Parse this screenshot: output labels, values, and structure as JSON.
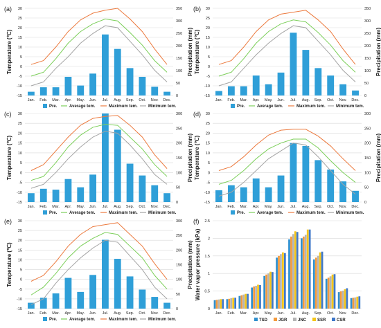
{
  "months": [
    "Jan.",
    "Feb.",
    "Mar.",
    "Apr.",
    "May.",
    "Jun.",
    "Jul.",
    "Aug.",
    "Sep.",
    "Oct.",
    "Nov.",
    "Dec."
  ],
  "colors": {
    "precipitation": "#2f9fd8",
    "average": "#7ccf5a",
    "maximum": "#ec7a3e",
    "minimum": "#a4a4a4",
    "TSD": "#2f8fce",
    "JGR": "#f39a3d",
    "JNC": "#b5b5b5",
    "SSR": "#f5c518",
    "CSR": "#3f78c9",
    "grid": "#d9d9d9"
  },
  "chart_data": [
    {
      "panel_label": "(a)",
      "type": "bar+line",
      "ylabel_left": "Temperature (℃)",
      "ylabel_right": "Precipitation (mm)",
      "ylim_left": [
        -15,
        30
      ],
      "yticks_left": [
        -15,
        -10,
        -5,
        0,
        5,
        10,
        15,
        20,
        25,
        30
      ],
      "ylim_right": [
        0,
        350
      ],
      "yticks_right": [
        0,
        50,
        100,
        150,
        200,
        250,
        300,
        350
      ],
      "categories": [
        "Jan.",
        "Feb.",
        "Mar.",
        "Apr.",
        "May.",
        "Jun.",
        "Jul.",
        "Aug.",
        "Sep.",
        "Oct.",
        "Nov.",
        "Dec."
      ],
      "grid": true,
      "legend": "bottom",
      "series": [
        {
          "name": "Pre.",
          "type": "bar",
          "axis": "right",
          "values": [
            15,
            33,
            33,
            75,
            40,
            88,
            245,
            187,
            110,
            75,
            35,
            15
          ]
        },
        {
          "name": "Average tem.",
          "type": "line",
          "axis": "left",
          "values": [
            -5,
            -3,
            4,
            12,
            18,
            22,
            24.5,
            23.5,
            17.5,
            11,
            3,
            -3
          ]
        },
        {
          "name": "Maximum tem.",
          "type": "line",
          "axis": "left",
          "values": [
            1,
            3,
            10,
            18,
            24,
            27.5,
            29,
            30,
            24.5,
            18,
            9,
            1
          ]
        },
        {
          "name": "Minimum tem.",
          "type": "line",
          "axis": "left",
          "values": [
            -10,
            -8,
            -1,
            5,
            12,
            17,
            21,
            20,
            13,
            6,
            -2,
            -8
          ]
        }
      ]
    },
    {
      "panel_label": "(b)",
      "type": "bar+line",
      "ylabel_left": "Temperature (℃)",
      "ylabel_right": "Precipitation (mm)",
      "ylim_left": [
        -15,
        30
      ],
      "yticks_left": [
        -15,
        -10,
        -5,
        0,
        5,
        10,
        15,
        20,
        25,
        30
      ],
      "ylim_right": [
        0,
        350
      ],
      "yticks_right": [
        0,
        50,
        100,
        150,
        200,
        250,
        300,
        350
      ],
      "categories": [
        "Jan.",
        "Feb.",
        "Mar.",
        "Apr.",
        "May.",
        "Jun.",
        "Jul.",
        "Aug.",
        "Sep.",
        "Oct.",
        "Nov.",
        "Dec."
      ],
      "grid": true,
      "legend": "bottom",
      "series": [
        {
          "name": "Pre.",
          "type": "bar",
          "axis": "right",
          "values": [
            18,
            37,
            37,
            80,
            45,
            92,
            252,
            183,
            110,
            80,
            45,
            20
          ]
        },
        {
          "name": "Average tem.",
          "type": "line",
          "axis": "left",
          "values": [
            -5,
            -3,
            4,
            12,
            18,
            22,
            24,
            23,
            17.5,
            11,
            3,
            -3
          ]
        },
        {
          "name": "Maximum tem.",
          "type": "line",
          "axis": "left",
          "values": [
            1,
            3,
            10,
            18,
            24,
            27,
            28,
            29,
            24,
            18,
            9,
            1
          ]
        },
        {
          "name": "Minimum tem.",
          "type": "line",
          "axis": "left",
          "values": [
            -10,
            -8,
            -1,
            6,
            12,
            17,
            21,
            20,
            13,
            6,
            -2,
            -8
          ]
        }
      ]
    },
    {
      "panel_label": "(c)",
      "type": "bar+line",
      "ylabel_left": "Temperature (℃)",
      "ylabel_right": "Precipitation (mm)",
      "ylim_left": [
        -15,
        30
      ],
      "yticks_left": [
        -15,
        -10,
        -5,
        0,
        5,
        10,
        15,
        20,
        25,
        30
      ],
      "ylim_right": [
        0,
        300
      ],
      "yticks_right": [
        0,
        50,
        100,
        150,
        200,
        250,
        300
      ],
      "categories": [
        "Jan.",
        "Feb.",
        "Mar.",
        "Apr.",
        "May.",
        "Jun.",
        "Jul.",
        "Aug.",
        "Sep.",
        "Oct.",
        "Nov.",
        "Dec."
      ],
      "grid": true,
      "legend": "bottom",
      "series": [
        {
          "name": "Pre.",
          "type": "bar",
          "axis": "right",
          "values": [
            30,
            45,
            42,
            78,
            50,
            93,
            300,
            245,
            130,
            90,
            57,
            30
          ]
        },
        {
          "name": "Average tem.",
          "type": "line",
          "axis": "left",
          "values": [
            -4,
            -2,
            5,
            13,
            19,
            23,
            24.5,
            24,
            18,
            12,
            4,
            -2
          ]
        },
        {
          "name": "Maximum tem.",
          "type": "line",
          "axis": "left",
          "values": [
            1,
            4,
            11,
            18,
            24,
            27.5,
            28.5,
            29,
            24,
            18,
            9,
            2
          ]
        },
        {
          "name": "Minimum tem.",
          "type": "line",
          "axis": "left",
          "values": [
            -8,
            -6,
            0,
            7,
            13,
            18,
            21,
            20,
            14,
            7,
            -1,
            -6
          ]
        }
      ]
    },
    {
      "panel_label": "(d)",
      "type": "bar+line",
      "ylabel_left": "Temperature (℃)",
      "ylabel_right": "Precipitation (mm)",
      "ylim_left": [
        -15,
        30
      ],
      "yticks_left": [
        -15,
        -10,
        -5,
        0,
        5,
        10,
        15,
        20,
        25,
        30
      ],
      "ylim_right": [
        0,
        300
      ],
      "yticks_right": [
        0,
        50,
        100,
        150,
        200,
        250,
        300
      ],
      "categories": [
        "Jan.",
        "Feb.",
        "Mar.",
        "Apr.",
        "May.",
        "Jun.",
        "Jul.",
        "Aug.",
        "Sep.",
        "Oct.",
        "Nov.",
        "Dec."
      ],
      "grid": true,
      "legend": "bottom",
      "series": [
        {
          "name": "Pre.",
          "type": "bar",
          "axis": "right",
          "values": [
            40,
            57,
            50,
            80,
            50,
            90,
            200,
            190,
            142,
            110,
            70,
            38
          ]
        },
        {
          "name": "Average tem.",
          "type": "line",
          "axis": "left",
          "values": [
            -6,
            -4,
            1,
            7,
            12,
            15,
            17,
            17,
            12.5,
            6,
            0,
            -5
          ]
        },
        {
          "name": "Maximum tem.",
          "type": "line",
          "axis": "left",
          "values": [
            1,
            3,
            8,
            14,
            19,
            21.5,
            22,
            22,
            18.5,
            13.5,
            7,
            1
          ]
        },
        {
          "name": "Minimum tem.",
          "type": "line",
          "axis": "left",
          "values": [
            -12,
            -10,
            -5,
            1,
            7,
            11,
            15,
            14,
            8,
            1,
            -6,
            -11
          ]
        }
      ]
    },
    {
      "panel_label": "(e)",
      "type": "bar+line",
      "ylabel_left": "Temperature (℃)",
      "ylabel_right": "Precipitation (mm)",
      "ylim_left": [
        -15,
        30
      ],
      "yticks_left": [
        -15,
        -10,
        -5,
        0,
        5,
        10,
        15,
        20,
        25,
        30
      ],
      "ylim_right": [
        0,
        300
      ],
      "yticks_right": [
        0,
        50,
        100,
        150,
        200,
        250,
        300
      ],
      "categories": [
        "Jan.",
        "Feb.",
        "Mar.",
        "Apr.",
        "May.",
        "Jun.",
        "Jul.",
        "Aug.",
        "Sep.",
        "Oct.",
        "Nov.",
        "Dec."
      ],
      "grid": true,
      "legend": "bottom",
      "series": [
        {
          "name": "Pre.",
          "type": "bar",
          "axis": "right",
          "values": [
            20,
            37,
            52,
            105,
            57,
            115,
            235,
            170,
            110,
            65,
            40,
            20
          ]
        },
        {
          "name": "Average tem.",
          "type": "line",
          "axis": "left",
          "values": [
            -8,
            -4,
            3,
            11,
            17,
            21,
            24,
            23,
            17,
            11,
            2,
            -5
          ]
        },
        {
          "name": "Maximum tem.",
          "type": "line",
          "axis": "left",
          "values": [
            -1,
            2,
            9,
            17,
            23,
            27,
            28,
            29,
            23,
            17,
            8,
            0
          ]
        },
        {
          "name": "Minimum tem.",
          "type": "line",
          "axis": "left",
          "values": [
            -13,
            -10,
            -2,
            5,
            11,
            16,
            20,
            19,
            12,
            5,
            -4,
            -10
          ]
        }
      ]
    },
    {
      "panel_label": "(f)",
      "type": "bar",
      "ylabel": "Water vapor pressure (kPa)",
      "ylim": [
        0,
        2.5
      ],
      "yticks": [
        0,
        0.5,
        1,
        1.5,
        2,
        2.5
      ],
      "categories": [
        "Jan.",
        "Feb.",
        "Mar.",
        "Apr.",
        "May.",
        "Jun.",
        "Jul.",
        "Aug.",
        "Sep.",
        "Oct.",
        "Nov.",
        "Dec."
      ],
      "grid": true,
      "legend": "bottom",
      "series": [
        {
          "name": "TSD",
          "values": [
            0.24,
            0.27,
            0.36,
            0.6,
            0.93,
            1.45,
            1.97,
            2.0,
            1.4,
            0.85,
            0.47,
            0.3
          ]
        },
        {
          "name": "JGR",
          "values": [
            0.25,
            0.28,
            0.38,
            0.63,
            0.97,
            1.5,
            2.05,
            2.05,
            1.45,
            0.88,
            0.49,
            0.31
          ]
        },
        {
          "name": "JNC",
          "values": [
            0.26,
            0.3,
            0.4,
            0.65,
            1.0,
            1.55,
            2.12,
            2.1,
            1.5,
            0.92,
            0.51,
            0.32
          ]
        },
        {
          "name": "SSR",
          "values": [
            0.27,
            0.31,
            0.42,
            0.68,
            1.05,
            1.6,
            2.2,
            2.25,
            1.6,
            0.97,
            0.55,
            0.34
          ]
        },
        {
          "name": "CSR",
          "values": [
            0.27,
            0.31,
            0.42,
            0.67,
            1.04,
            1.58,
            2.18,
            2.25,
            1.62,
            0.98,
            0.58,
            0.35
          ]
        }
      ]
    }
  ]
}
